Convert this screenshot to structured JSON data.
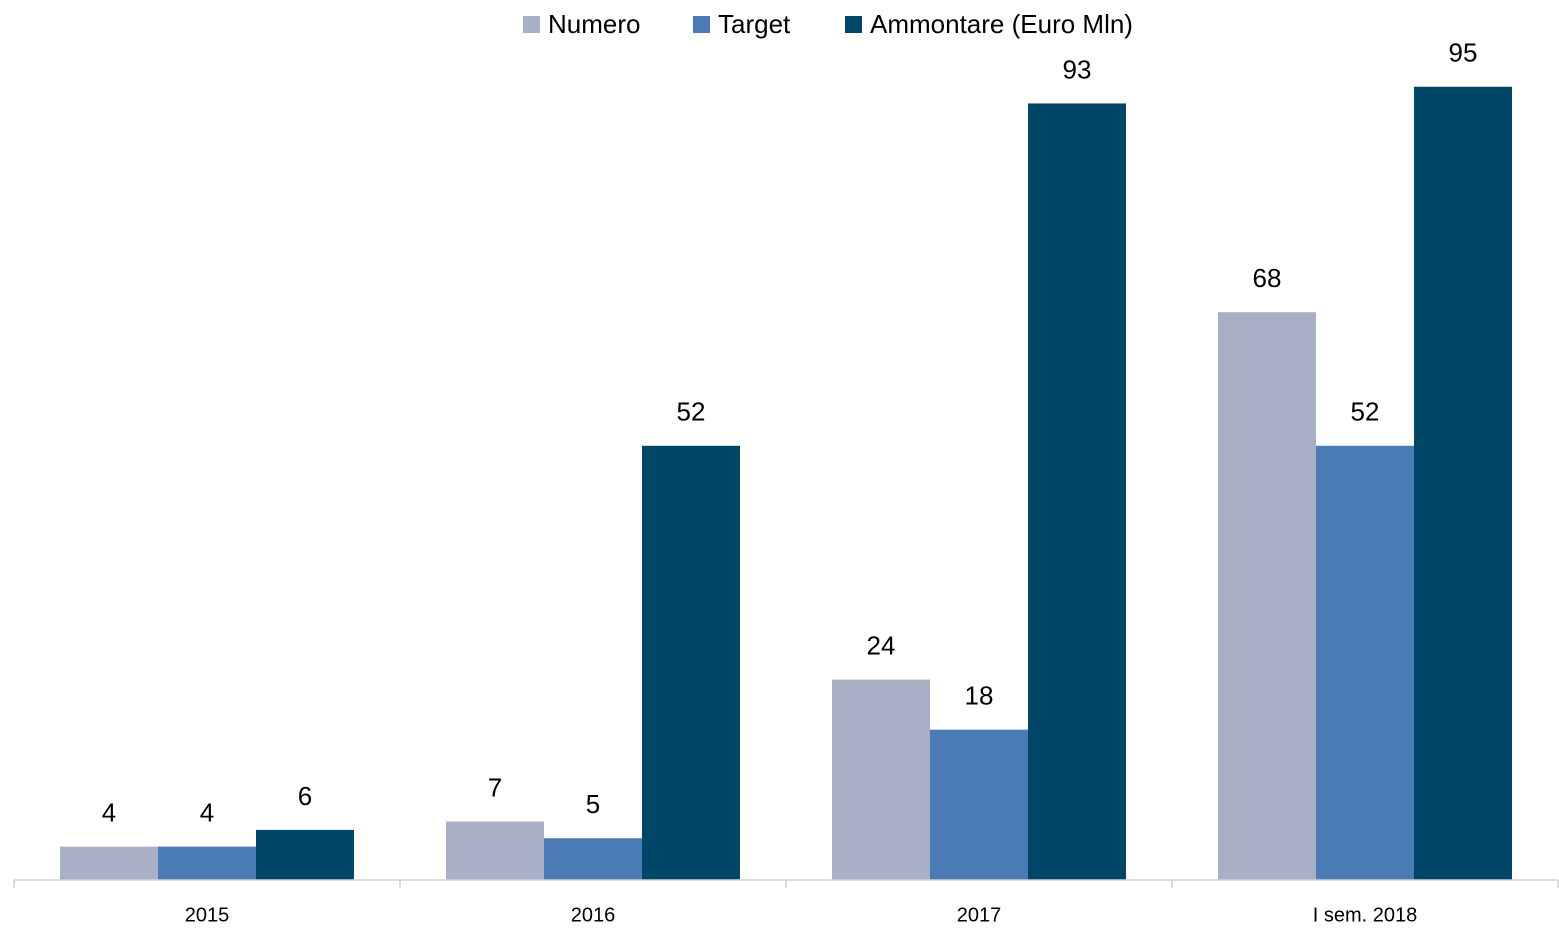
{
  "chart_data": {
    "type": "bar",
    "categories": [
      "2015",
      "2016",
      "2017",
      "I sem. 2018"
    ],
    "series": [
      {
        "name": "Numero",
        "color": "#a9afc5",
        "values": [
          4,
          7,
          24,
          68
        ]
      },
      {
        "name": "Target",
        "color": "#4a7bb5",
        "values": [
          4,
          5,
          18,
          52
        ]
      },
      {
        "name": "Ammontare (Euro Mln)",
        "color": "#004666",
        "values": [
          6,
          52,
          93,
          95
        ]
      }
    ],
    "ylim": [
      0,
      100
    ],
    "legend": "top"
  }
}
